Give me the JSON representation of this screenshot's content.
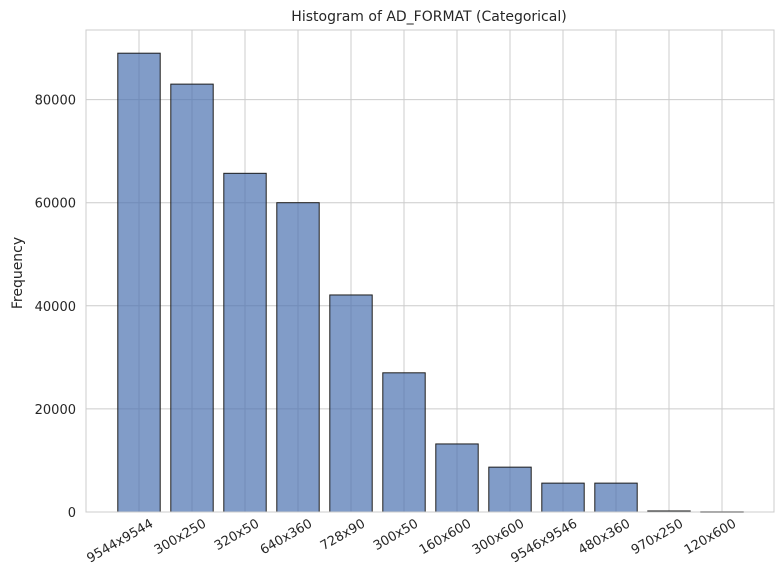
{
  "chart_data": {
    "type": "bar",
    "title": "Histogram of AD_FORMAT (Categorical)",
    "xlabel": "",
    "ylabel": "Frequency",
    "categories": [
      "9544x9544",
      "300x250",
      "320x50",
      "640x360",
      "728x90",
      "300x50",
      "160x600",
      "300x600",
      "9546x9546",
      "480x360",
      "970x250",
      "120x600"
    ],
    "values": [
      89000,
      83000,
      65700,
      60000,
      42100,
      27000,
      13200,
      8700,
      5600,
      5600,
      200,
      50
    ],
    "ylim": [
      0,
      93500
    ],
    "yticks": [
      0,
      20000,
      40000,
      60000,
      80000
    ],
    "ytick_labels": [
      "0",
      "20000",
      "40000",
      "60000",
      "80000"
    ],
    "grid": true,
    "bar_color": "#4c72b0",
    "bar_edge_color": "#1c1c1c",
    "grid_color": "#cccccc"
  }
}
